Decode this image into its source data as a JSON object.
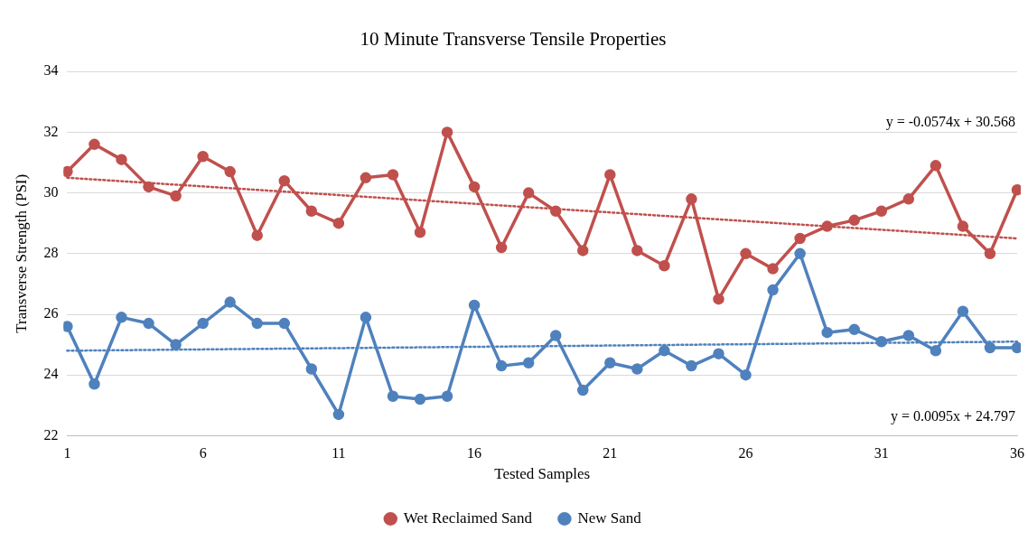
{
  "chart_data": {
    "type": "line",
    "title": "10 Minute Transverse Tensile Properties",
    "xlabel": "Tested Samples",
    "ylabel": "Transverse Strength (PSI)",
    "x": [
      1,
      2,
      3,
      4,
      5,
      6,
      7,
      8,
      9,
      10,
      11,
      12,
      13,
      14,
      15,
      16,
      17,
      18,
      19,
      20,
      21,
      22,
      23,
      24,
      25,
      26,
      27,
      28,
      29,
      30,
      31,
      32,
      33,
      34,
      35,
      36
    ],
    "xlim": [
      1,
      36
    ],
    "xticks": [
      1,
      6,
      11,
      16,
      21,
      26,
      31,
      36
    ],
    "ylim": [
      22,
      34
    ],
    "yticks": [
      22,
      24,
      26,
      28,
      30,
      32,
      34
    ],
    "grid": "y",
    "legend": "bottom",
    "marker": "circle",
    "line_style": "solid",
    "series": [
      {
        "name": "Wet Reclaimed Sand",
        "color": "#c0504d",
        "values": [
          30.7,
          31.6,
          31.1,
          30.2,
          29.9,
          31.2,
          30.7,
          28.6,
          30.4,
          29.4,
          29.0,
          30.5,
          30.6,
          28.7,
          32.0,
          30.2,
          28.2,
          30.0,
          29.4,
          28.1,
          30.6,
          28.1,
          27.6,
          29.8,
          26.5,
          28.0,
          27.5,
          28.5,
          28.9,
          29.1,
          29.4,
          29.8,
          30.9,
          28.9,
          28.0,
          30.1
        ]
      },
      {
        "name": "New Sand",
        "color": "#4f81bd",
        "values": [
          25.6,
          23.7,
          25.9,
          25.7,
          25.0,
          25.7,
          26.4,
          25.7,
          25.7,
          24.2,
          22.7,
          25.9,
          23.3,
          23.2,
          23.3,
          26.3,
          24.3,
          24.4,
          25.3,
          23.5,
          24.4,
          24.2,
          24.8,
          24.3,
          24.7,
          24.0,
          26.8,
          28.0,
          25.4,
          25.5,
          25.1,
          25.3,
          24.8,
          26.1,
          24.9,
          24.9
        ]
      },
      {
        "type": "line",
        "color": "#c0504d",
        "values": [
          30.5,
          null,
          null,
          null,
          null,
          null,
          null,
          null,
          null,
          null,
          null,
          null,
          null,
          null,
          null,
          null,
          null,
          null,
          null,
          null,
          null,
          null,
          null,
          null,
          null,
          null,
          null,
          null,
          null,
          null,
          null,
          null,
          null,
          null,
          null,
          28.5
        ],
        "marker": "none",
        "line_style": "dotted"
      },
      {
        "type": "line",
        "color": "#4f81bd",
        "values": [
          24.8,
          null,
          null,
          null,
          null,
          null,
          null,
          null,
          null,
          null,
          null,
          null,
          null,
          null,
          null,
          null,
          null,
          null,
          null,
          null,
          null,
          null,
          null,
          null,
          null,
          null,
          null,
          null,
          null,
          null,
          null,
          null,
          null,
          null,
          null,
          25.1
        ],
        "marker": "none",
        "line_style": "dotted"
      }
    ],
    "annotations": [
      "y = -0.0574x + 30.568",
      "y = 0.0095x + 24.797"
    ]
  }
}
